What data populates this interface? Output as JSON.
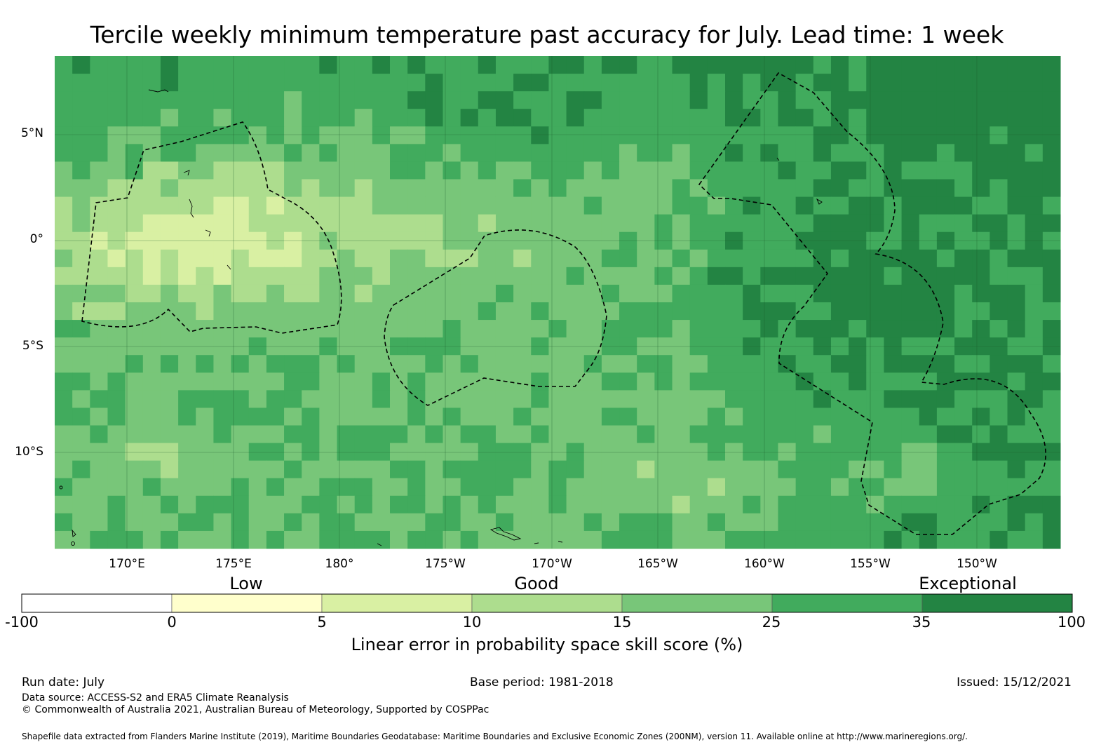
{
  "title": "Tercile weekly minimum temperature past accuracy for July. Lead time: 1 week",
  "map": {
    "lat_labels": [
      "5°N",
      "0°",
      "5°S",
      "10°S"
    ],
    "lon_labels": [
      "170°E",
      "175°E",
      "180°",
      "175°W",
      "170°W",
      "165°W",
      "160°W",
      "155°W",
      "150°W"
    ],
    "categories": [
      "Low",
      "Good",
      "Exceptional"
    ]
  },
  "colorbar": {
    "ticks": [
      "-100",
      "0",
      "5",
      "10",
      "15",
      "25",
      "35",
      "100"
    ],
    "colors": [
      "#ffffff",
      "#ffffcc",
      "#d9f0a3",
      "#addd8e",
      "#78c679",
      "#41ab5d",
      "#238443"
    ],
    "title": "Linear error in probability space skill score (%)"
  },
  "footer": {
    "run_date": "Run date: July",
    "base_period": "Base period: 1981-2018",
    "issued": "Issued: 15/12/2021",
    "data_source": "Data source: ACCESS-S2 and ERA5 Climate Reanalysis",
    "copyright": "© Commonwealth of Australia 2021, Australian Bureau of Meteorology, Supported by COSPPac",
    "shapefile": "Shapefile data extracted from Flanders Marine Institute (2019), Maritime Boundaries Geodatabase: Maritime Boundaries and Exclusive Economic Zones (200NM), version 11. Available online at http://www.marineregions.org/."
  }
}
